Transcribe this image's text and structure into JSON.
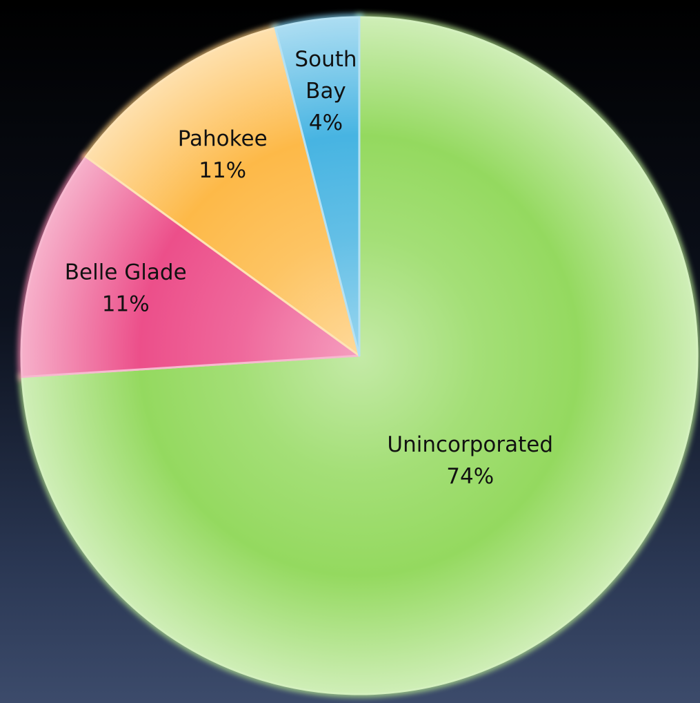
{
  "chart_data": {
    "type": "pie",
    "title": "",
    "categories": [
      "Unincorporated",
      "Belle Glade",
      "Pahokee",
      "South Bay"
    ],
    "values": [
      74,
      11,
      11,
      4
    ],
    "percent_labels": [
      "74%",
      "11%",
      "11%",
      "4%"
    ],
    "label_lines": [
      [
        "Unincorporated"
      ],
      [
        "Belle Glade"
      ],
      [
        "Pahokee"
      ],
      [
        "South",
        "Bay"
      ]
    ],
    "colors": [
      "#94d95f",
      "#ec4f8a",
      "#fdb948",
      "#47b4e2"
    ],
    "legend": "none",
    "start_angle_deg": 0,
    "direction": "clockwise"
  }
}
